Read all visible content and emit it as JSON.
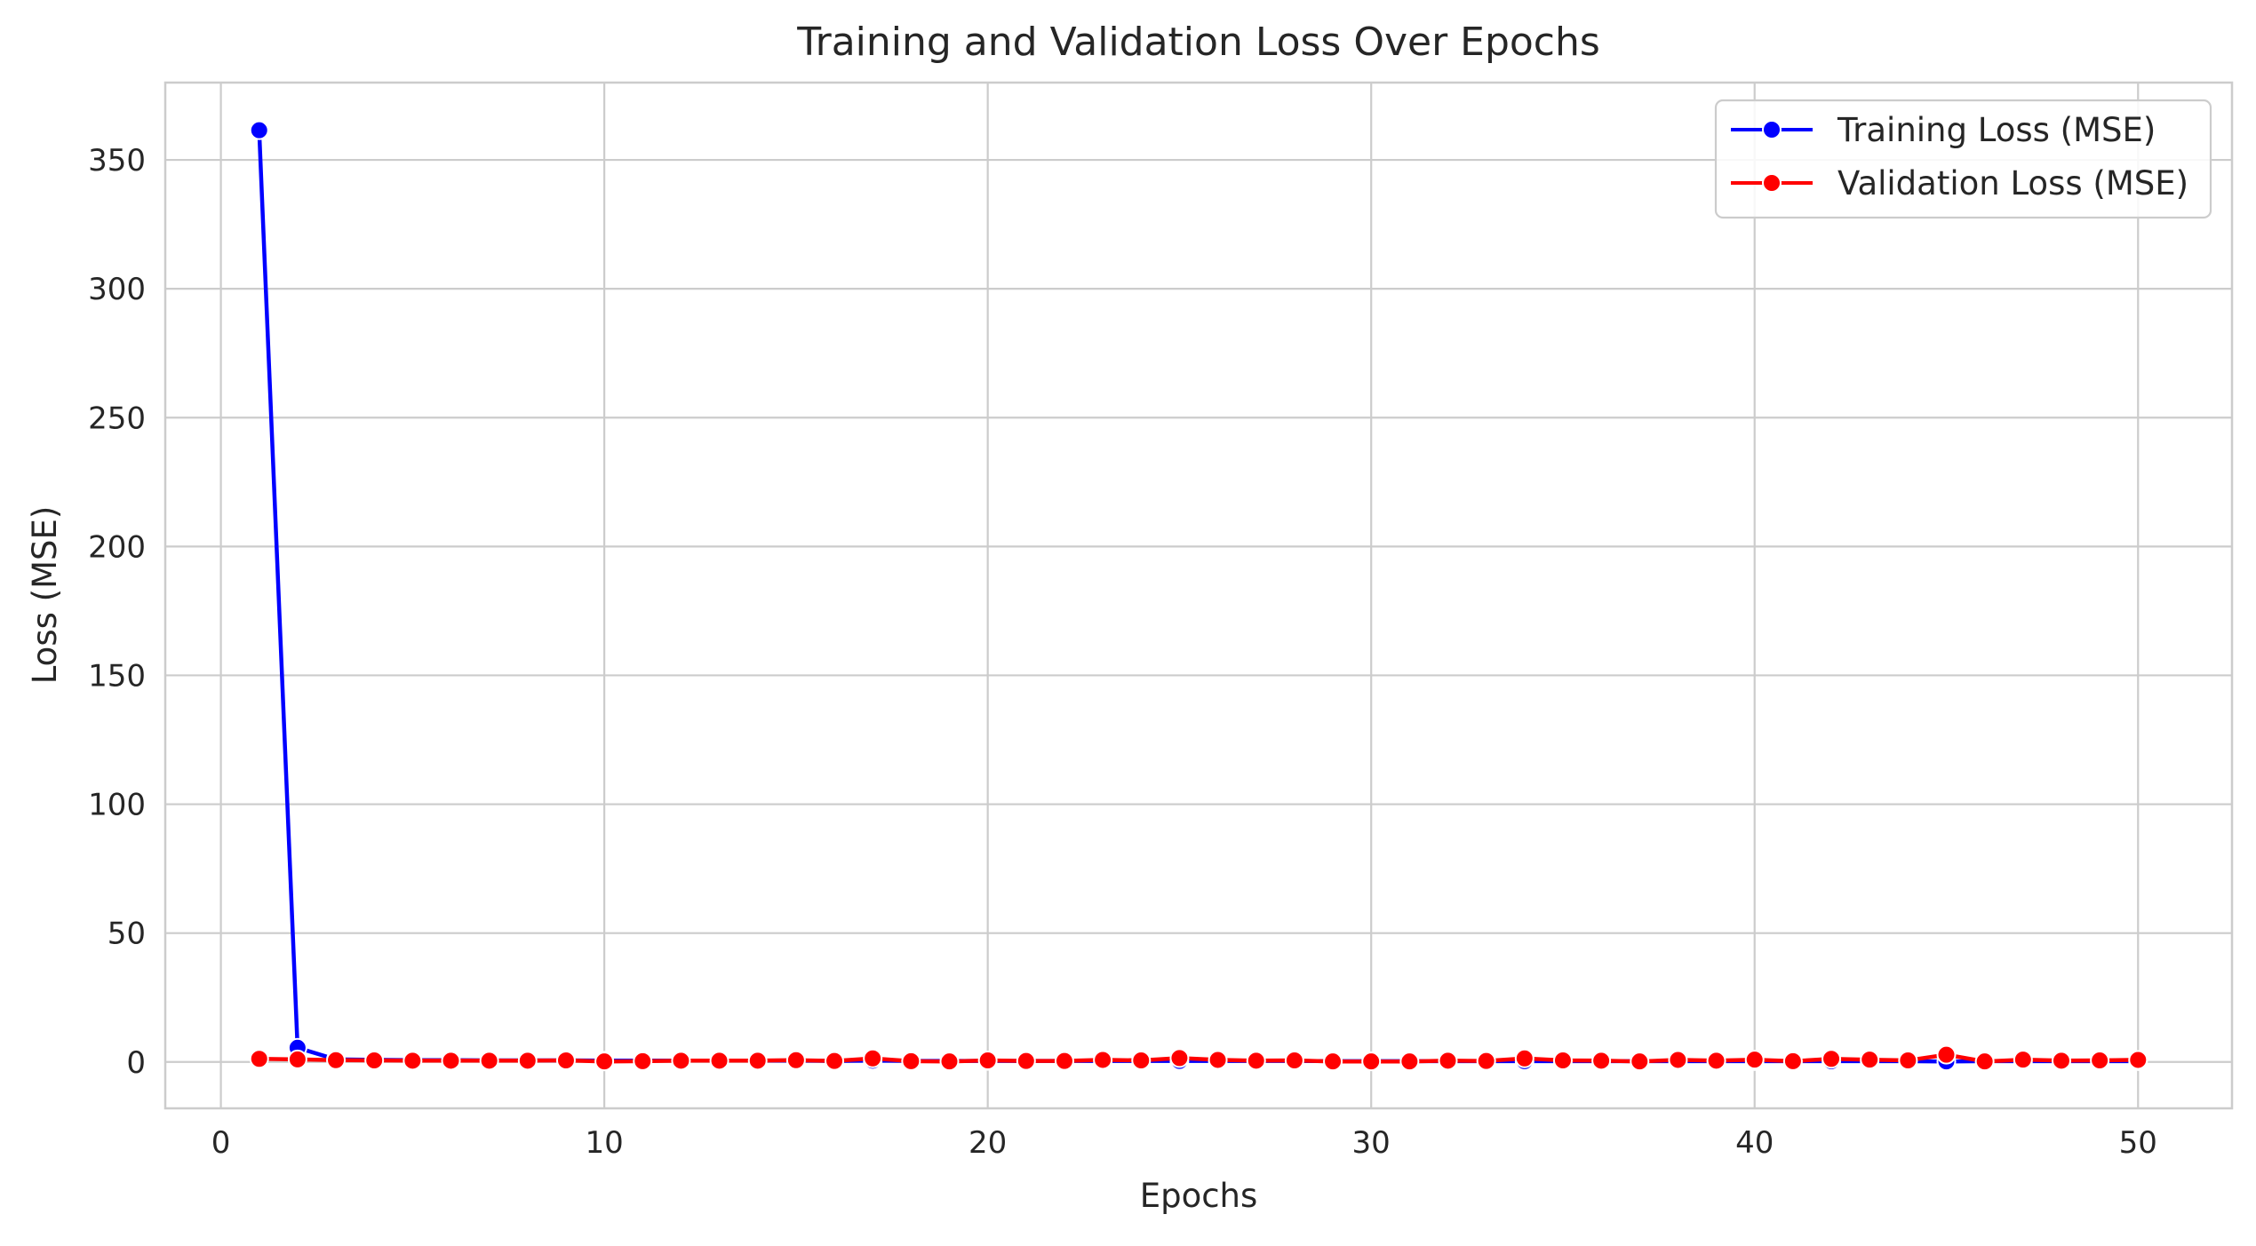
{
  "chart_data": {
    "type": "line",
    "title": "Training and Validation Loss Over Epochs",
    "xlabel": "Epochs",
    "ylabel": "Loss (MSE)",
    "xlim": [
      -1.45,
      52.45
    ],
    "ylim": [
      -18,
      380
    ],
    "xticks": [
      0,
      10,
      20,
      30,
      40,
      50
    ],
    "yticks": [
      0,
      50,
      100,
      150,
      200,
      250,
      300,
      350
    ],
    "grid": true,
    "legend_position": "top-right",
    "x": [
      1,
      2,
      3,
      4,
      5,
      6,
      7,
      8,
      9,
      10,
      11,
      12,
      13,
      14,
      15,
      16,
      17,
      18,
      19,
      20,
      21,
      22,
      23,
      24,
      25,
      26,
      27,
      28,
      29,
      30,
      31,
      32,
      33,
      34,
      35,
      36,
      37,
      38,
      39,
      40,
      41,
      42,
      43,
      44,
      45,
      46,
      47,
      48,
      49,
      50
    ],
    "series": [
      {
        "name": "Training Loss (MSE)",
        "color": "#0000ff",
        "values": [
          361.5,
          5.5,
          1.0,
          0.8,
          0.7,
          0.7,
          0.6,
          0.6,
          0.6,
          0.5,
          0.5,
          0.5,
          0.5,
          0.5,
          0.5,
          0.4,
          0.5,
          0.4,
          0.4,
          0.4,
          0.4,
          0.4,
          0.4,
          0.4,
          0.4,
          0.4,
          0.4,
          0.4,
          0.3,
          0.3,
          0.3,
          0.3,
          0.3,
          0.3,
          0.3,
          0.3,
          0.3,
          0.3,
          0.3,
          0.3,
          0.3,
          0.3,
          0.3,
          0.3,
          0.2,
          0.3,
          0.3,
          0.3,
          0.3,
          0.3
        ]
      },
      {
        "name": "Validation Loss (MSE)",
        "color": "#ff0000",
        "values": [
          1.2,
          1.0,
          0.7,
          0.6,
          0.5,
          0.5,
          0.5,
          0.5,
          0.6,
          0.2,
          0.3,
          0.5,
          0.5,
          0.5,
          0.7,
          0.4,
          1.4,
          0.3,
          0.2,
          0.6,
          0.4,
          0.4,
          0.8,
          0.6,
          1.5,
          0.8,
          0.5,
          0.6,
          0.2,
          0.2,
          0.2,
          0.5,
          0.4,
          1.4,
          0.6,
          0.5,
          0.2,
          0.8,
          0.5,
          0.9,
          0.3,
          1.2,
          0.9,
          0.6,
          2.8,
          0.2,
          0.9,
          0.5,
          0.6,
          0.8
        ]
      }
    ]
  }
}
